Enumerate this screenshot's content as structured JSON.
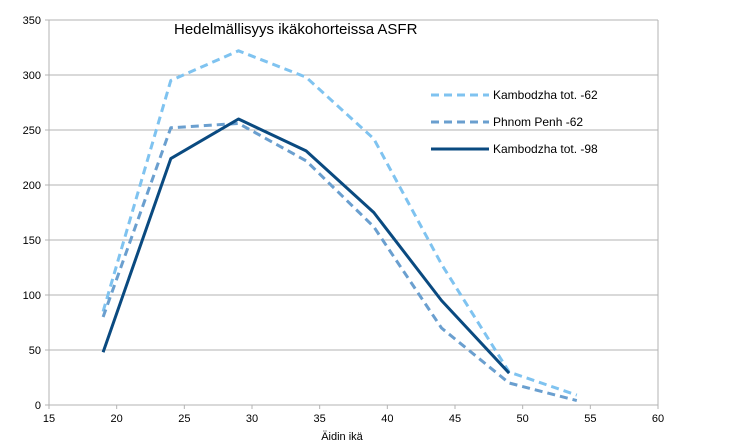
{
  "chart_data": {
    "type": "line",
    "title": "Hedelmällisyys ikäkohorteissa ASFR",
    "xlabel": "Äidin ikä",
    "ylabel": "",
    "xlim": [
      15,
      60
    ],
    "ylim": [
      0,
      350
    ],
    "xticks": [
      15,
      20,
      25,
      30,
      35,
      40,
      45,
      50,
      55,
      60
    ],
    "yticks": [
      0,
      50,
      100,
      150,
      200,
      250,
      300,
      350
    ],
    "grid": "horizontal",
    "legend_position": "right",
    "series": [
      {
        "name": "Kambodzha tot. -62",
        "color": "#7fc3f0",
        "style": "dashed",
        "x": [
          19,
          24,
          29,
          34,
          39,
          44,
          49,
          54
        ],
        "values": [
          85,
          295,
          322,
          298,
          242,
          128,
          30,
          9
        ]
      },
      {
        "name": "Phnom Penh -62",
        "color": "#6a9fcf",
        "style": "dashed",
        "x": [
          19,
          24,
          29,
          34,
          39,
          44,
          49,
          54
        ],
        "values": [
          80,
          252,
          256,
          222,
          162,
          70,
          20,
          4
        ]
      },
      {
        "name": "Kambodzha tot. -98",
        "color": "#0a4a80",
        "style": "solid",
        "x": [
          19,
          24,
          29,
          34,
          39,
          44,
          49
        ],
        "values": [
          48,
          224,
          260,
          231,
          175,
          95,
          29
        ]
      }
    ]
  }
}
